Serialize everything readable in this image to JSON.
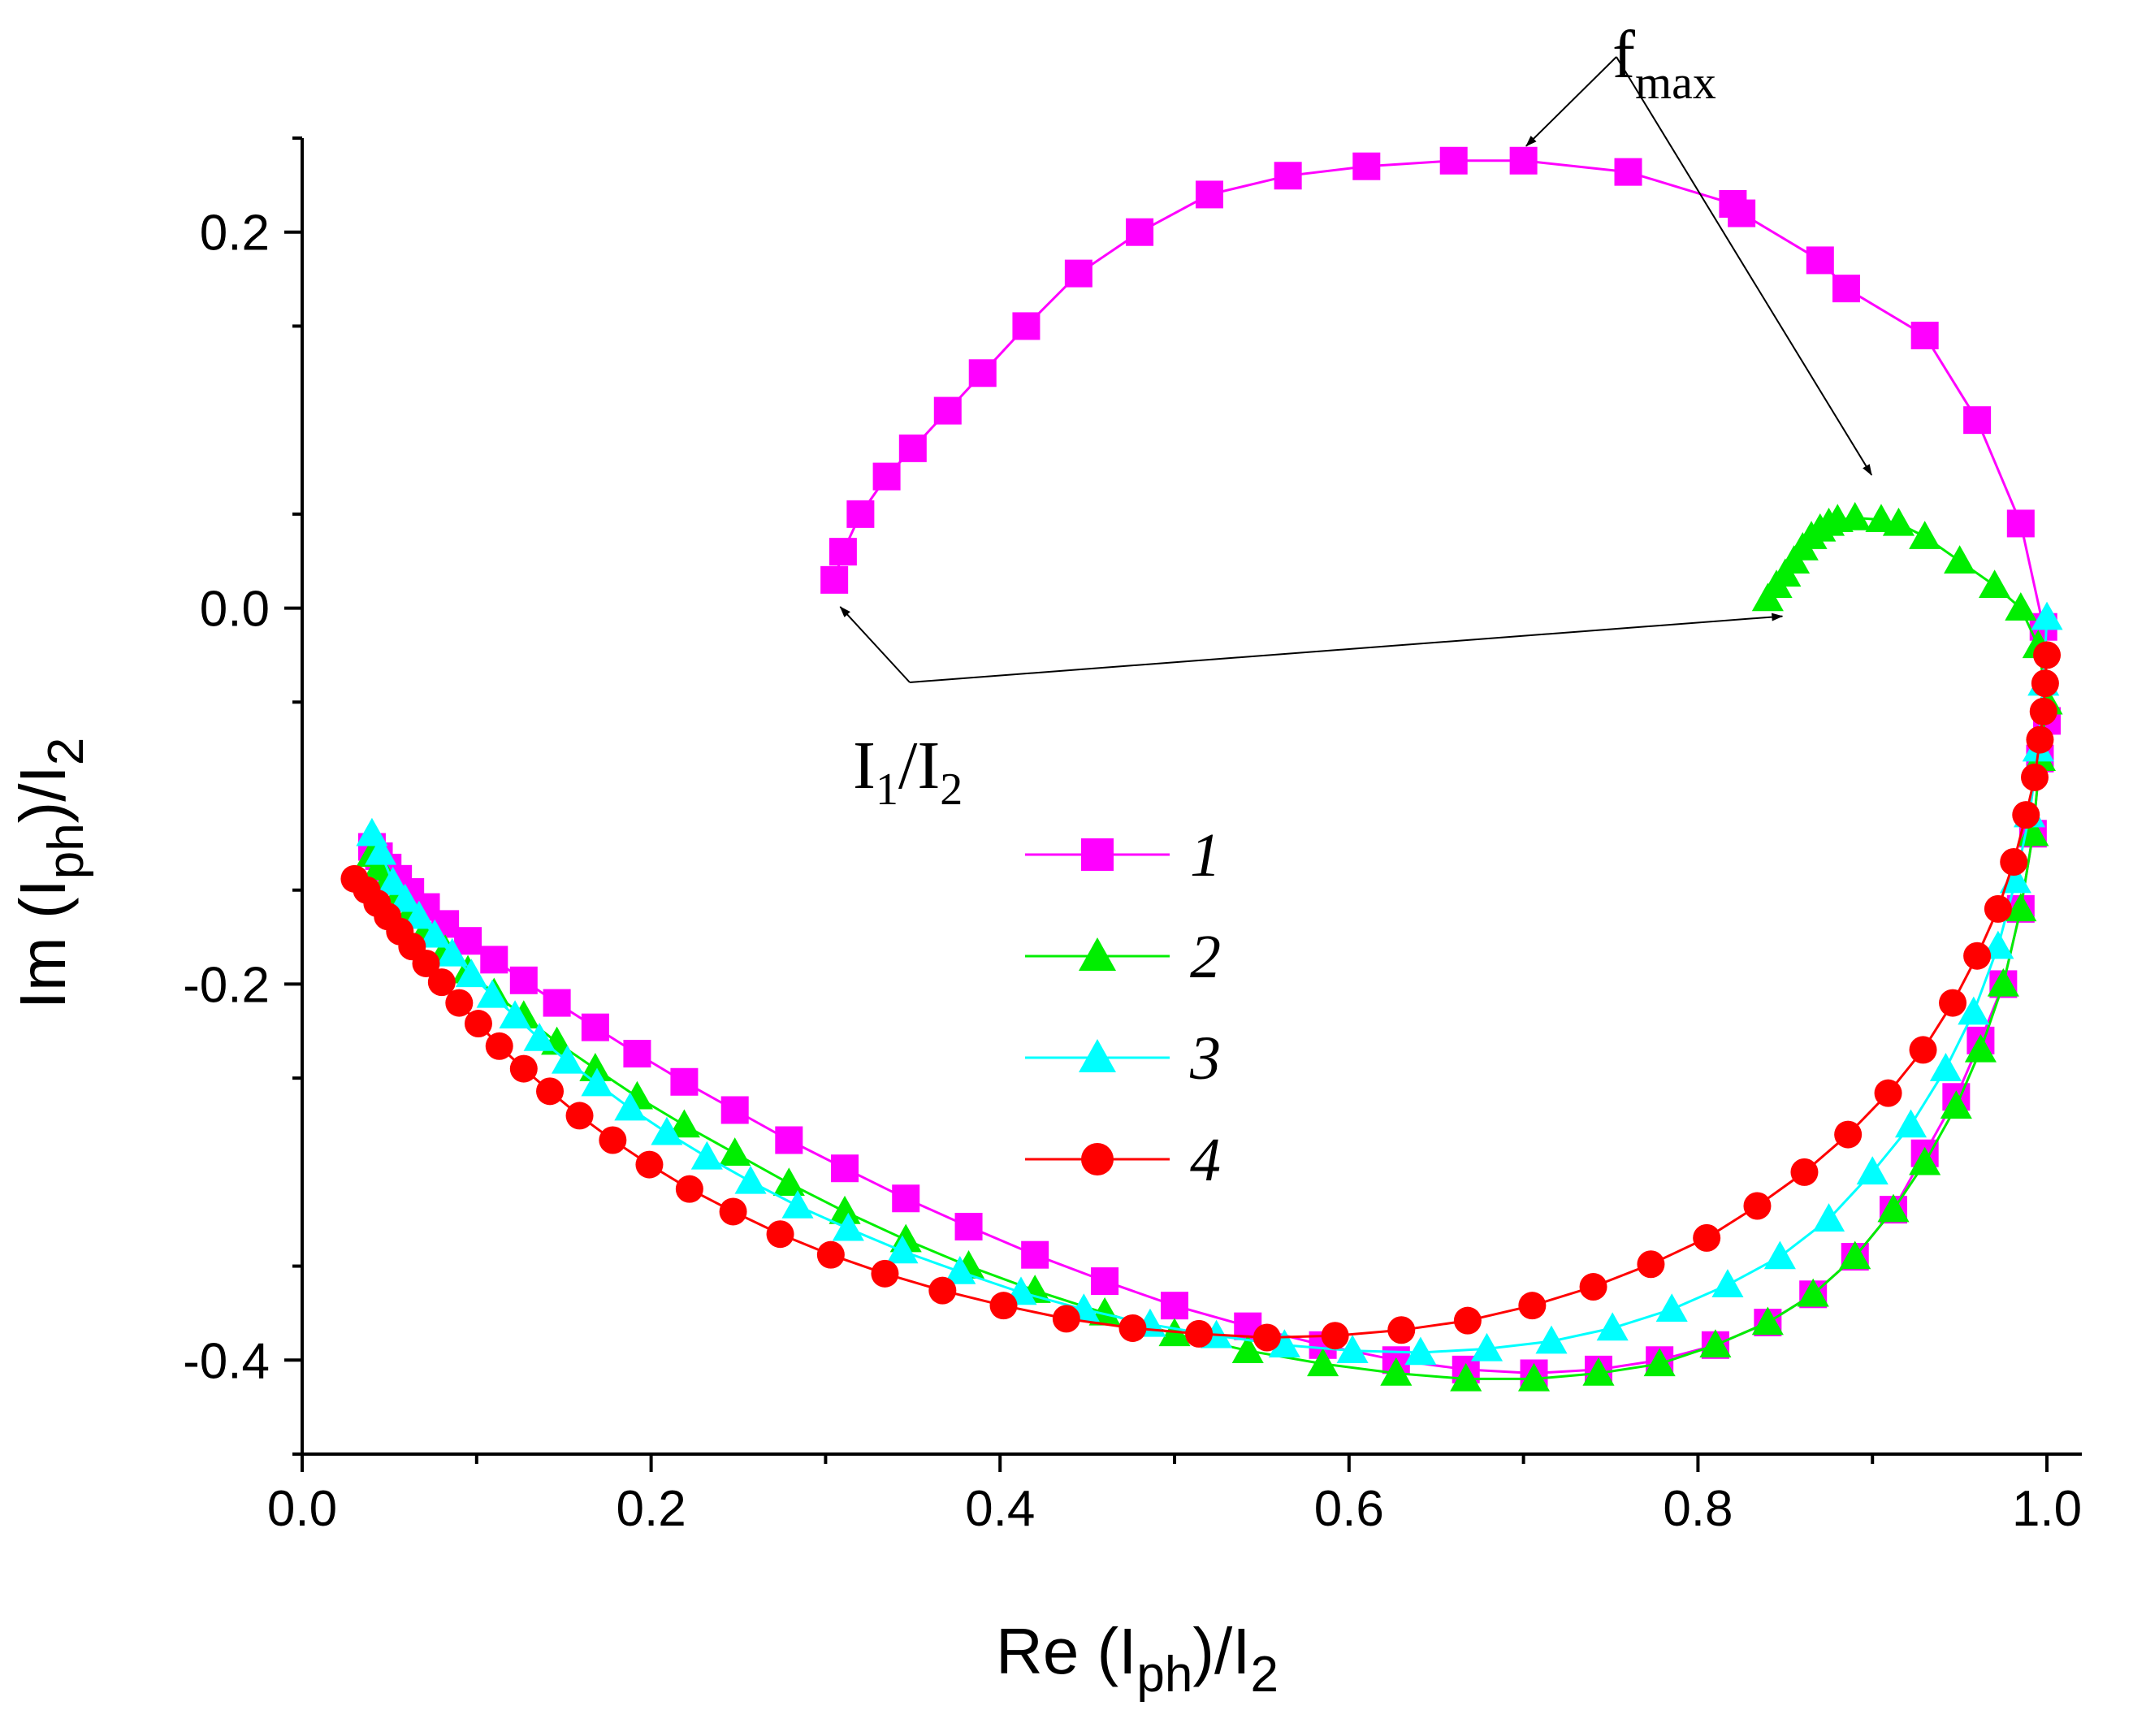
{
  "chart_data": {
    "type": "scatter",
    "title": "",
    "xlabel": {
      "main": "Re (I",
      "sub1": "ph",
      "mid": ")/I",
      "sub2": "2"
    },
    "ylabel": {
      "main": "Im (I",
      "sub1": "ph",
      "mid": ")/I",
      "sub2": "2"
    },
    "xlim": [
      0.0,
      1.02
    ],
    "ylim": [
      -0.45,
      0.25
    ],
    "xticks": [
      0.0,
      0.2,
      0.4,
      0.6,
      0.8,
      1.0
    ],
    "xtick_labels": [
      "0.0",
      "0.2",
      "0.4",
      "0.6",
      "0.8",
      "1.0"
    ],
    "yticks": [
      -0.4,
      -0.2,
      0.0,
      0.2
    ],
    "ytick_labels": [
      "-0.4",
      "-0.2",
      "0.0",
      "0.2"
    ],
    "grid": false,
    "legend_position": "center-left",
    "annotations": {
      "fmax": {
        "main": "f",
        "sub": "max",
        "points_to": [
          [
            0.695,
            0.238
          ],
          [
            0.893,
            0.063
          ]
        ]
      },
      "i1i2": {
        "a": "I",
        "a_sub": "1",
        "b": "/I",
        "b_sub": "2",
        "points_to": [
          [
            0.3,
            0.005
          ],
          [
            0.84,
            0.0
          ]
        ]
      }
    },
    "series": [
      {
        "name": "1",
        "marker": "square",
        "color": "#FF00FF",
        "x": [
          1.0,
          0.996,
          0.992,
          0.985,
          0.975,
          0.962,
          0.948,
          0.93,
          0.912,
          0.89,
          0.866,
          0.84,
          0.81,
          0.778,
          0.743,
          0.706,
          0.667,
          0.627,
          0.585,
          0.542,
          0.5,
          0.46,
          0.42,
          0.382,
          0.346,
          0.311,
          0.279,
          0.248,
          0.219,
          0.192,
          0.168,
          0.146,
          0.127,
          0.11,
          0.095,
          0.082,
          0.071,
          0.062,
          0.055,
          0.049,
          0.044,
          0.04,
          0.305,
          0.31,
          0.32,
          0.335,
          0.35,
          0.37,
          0.39,
          0.415,
          0.445,
          0.48,
          0.52,
          0.565,
          0.61,
          0.66,
          0.7,
          0.76,
          0.82,
          0.825,
          0.87,
          0.885,
          0.93,
          0.96,
          0.985,
          0.998
        ],
        "y": [
          -0.06,
          -0.08,
          -0.12,
          -0.16,
          -0.2,
          -0.23,
          -0.26,
          -0.29,
          -0.32,
          -0.345,
          -0.365,
          -0.38,
          -0.392,
          -0.4,
          -0.405,
          -0.407,
          -0.405,
          -0.4,
          -0.392,
          -0.382,
          -0.371,
          -0.358,
          -0.344,
          -0.329,
          -0.314,
          -0.298,
          -0.283,
          -0.267,
          -0.252,
          -0.237,
          -0.223,
          -0.21,
          -0.198,
          -0.187,
          -0.177,
          -0.168,
          -0.159,
          -0.151,
          -0.144,
          -0.138,
          -0.132,
          -0.127,
          0.015,
          0.03,
          0.05,
          0.07,
          0.085,
          0.105,
          0.125,
          0.15,
          0.178,
          0.2,
          0.22,
          0.23,
          0.235,
          0.238,
          0.238,
          0.232,
          0.215,
          0.21,
          0.185,
          0.17,
          0.145,
          0.1,
          0.045,
          -0.01
        ]
      },
      {
        "name": "2",
        "marker": "triangle",
        "color": "#00EE00",
        "x": [
          0.84,
          0.845,
          0.85,
          0.855,
          0.86,
          0.865,
          0.87,
          0.875,
          0.88,
          0.89,
          0.905,
          0.915,
          0.93,
          0.95,
          0.97,
          0.985,
          0.995,
          1.0,
          0.996,
          0.992,
          0.985,
          0.975,
          0.962,
          0.948,
          0.93,
          0.912,
          0.89,
          0.866,
          0.84,
          0.81,
          0.778,
          0.743,
          0.706,
          0.667,
          0.627,
          0.585,
          0.542,
          0.5,
          0.46,
          0.42,
          0.382,
          0.346,
          0.311,
          0.279,
          0.248,
          0.219,
          0.192,
          0.168,
          0.146,
          0.127,
          0.11,
          0.095,
          0.082,
          0.071,
          0.062,
          0.055,
          0.049,
          0.044,
          0.04
        ],
        "y": [
          0.005,
          0.012,
          0.018,
          0.025,
          0.032,
          0.038,
          0.042,
          0.045,
          0.047,
          0.048,
          0.047,
          0.045,
          0.038,
          0.025,
          0.012,
          0.0,
          -0.02,
          -0.05,
          -0.08,
          -0.12,
          -0.16,
          -0.2,
          -0.235,
          -0.265,
          -0.295,
          -0.32,
          -0.345,
          -0.365,
          -0.38,
          -0.392,
          -0.402,
          -0.407,
          -0.41,
          -0.41,
          -0.407,
          -0.402,
          -0.395,
          -0.386,
          -0.375,
          -0.363,
          -0.35,
          -0.336,
          -0.321,
          -0.306,
          -0.29,
          -0.275,
          -0.26,
          -0.245,
          -0.231,
          -0.217,
          -0.205,
          -0.193,
          -0.182,
          -0.171,
          -0.162,
          -0.153,
          -0.145,
          -0.138,
          -0.131
        ]
      },
      {
        "name": "3",
        "marker": "triangle",
        "color": "#00FFFF",
        "x": [
          1.0,
          0.998,
          0.995,
          0.99,
          0.982,
          0.972,
          0.958,
          0.942,
          0.922,
          0.9,
          0.875,
          0.847,
          0.817,
          0.785,
          0.751,
          0.716,
          0.679,
          0.641,
          0.602,
          0.563,
          0.524,
          0.486,
          0.448,
          0.412,
          0.377,
          0.344,
          0.313,
          0.284,
          0.257,
          0.232,
          0.209,
          0.188,
          0.169,
          0.152,
          0.136,
          0.122,
          0.109,
          0.097,
          0.086,
          0.076,
          0.067,
          0.059,
          0.052,
          0.045,
          0.04
        ],
        "y": [
          -0.005,
          -0.04,
          -0.075,
          -0.11,
          -0.145,
          -0.18,
          -0.215,
          -0.245,
          -0.275,
          -0.3,
          -0.325,
          -0.345,
          -0.36,
          -0.373,
          -0.383,
          -0.39,
          -0.394,
          -0.396,
          -0.395,
          -0.392,
          -0.387,
          -0.381,
          -0.373,
          -0.364,
          -0.353,
          -0.342,
          -0.33,
          -0.318,
          -0.305,
          -0.292,
          -0.279,
          -0.266,
          -0.253,
          -0.241,
          -0.229,
          -0.217,
          -0.206,
          -0.195,
          -0.184,
          -0.174,
          -0.164,
          -0.155,
          -0.146,
          -0.13,
          -0.12
        ]
      },
      {
        "name": "4",
        "marker": "circle",
        "color": "#FF0000",
        "x": [
          1.0,
          0.999,
          0.998,
          0.996,
          0.993,
          0.988,
          0.981,
          0.972,
          0.96,
          0.946,
          0.929,
          0.909,
          0.886,
          0.861,
          0.834,
          0.805,
          0.773,
          0.74,
          0.705,
          0.668,
          0.63,
          0.592,
          0.553,
          0.514,
          0.476,
          0.438,
          0.402,
          0.367,
          0.334,
          0.303,
          0.274,
          0.247,
          0.222,
          0.199,
          0.178,
          0.159,
          0.142,
          0.127,
          0.113,
          0.101,
          0.09,
          0.08,
          0.071,
          0.063,
          0.056,
          0.049,
          0.043,
          0.037,
          0.03
        ],
        "y": [
          -0.025,
          -0.04,
          -0.055,
          -0.07,
          -0.09,
          -0.11,
          -0.135,
          -0.16,
          -0.185,
          -0.21,
          -0.235,
          -0.258,
          -0.28,
          -0.3,
          -0.318,
          -0.335,
          -0.349,
          -0.361,
          -0.371,
          -0.379,
          -0.384,
          -0.387,
          -0.388,
          -0.386,
          -0.383,
          -0.378,
          -0.371,
          -0.363,
          -0.354,
          -0.344,
          -0.333,
          -0.321,
          -0.309,
          -0.296,
          -0.283,
          -0.27,
          -0.257,
          -0.245,
          -0.233,
          -0.221,
          -0.21,
          -0.199,
          -0.189,
          -0.18,
          -0.172,
          -0.164,
          -0.157,
          -0.15,
          -0.144
        ]
      }
    ]
  }
}
